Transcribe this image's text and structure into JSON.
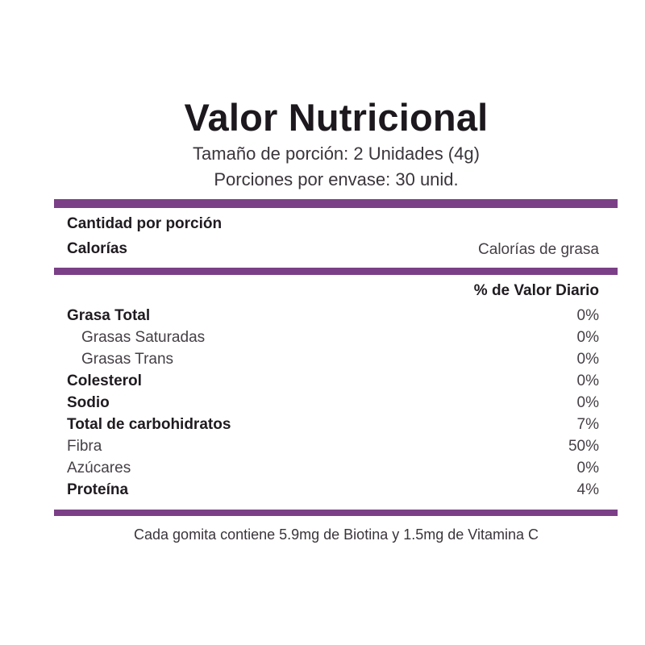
{
  "colors": {
    "accent": "#7b3f87"
  },
  "label": {
    "title": "Valor Nutricional",
    "serving_size": "Tamaño de porción: 2 Unidades (4g)",
    "servings_per_container": "Porciones por envase: 30 unid.",
    "amount_per_serving": "Cantidad por porción",
    "calories": "Calorías",
    "calories_from_fat": "Calorías de grasa",
    "daily_value_header": "% de Valor Diario",
    "nutrients": [
      {
        "name": "Grasa Total",
        "value": "0%"
      },
      {
        "name": "Grasas Saturadas",
        "value": "0%"
      },
      {
        "name": "Grasas Trans",
        "value": "0%"
      },
      {
        "name": "Colesterol",
        "value": "0%"
      },
      {
        "name": "Sodio",
        "value": "0%"
      },
      {
        "name": "Total de carbohidratos",
        "value": "7%"
      },
      {
        "name": "Fibra",
        "value": "50%"
      },
      {
        "name": "Azúcares",
        "value": "0%"
      },
      {
        "name": "Proteína",
        "value": "4%"
      }
    ],
    "footnote": "Cada gomita contiene 5.9mg de Biotina y 1.5mg de Vitamina C"
  }
}
